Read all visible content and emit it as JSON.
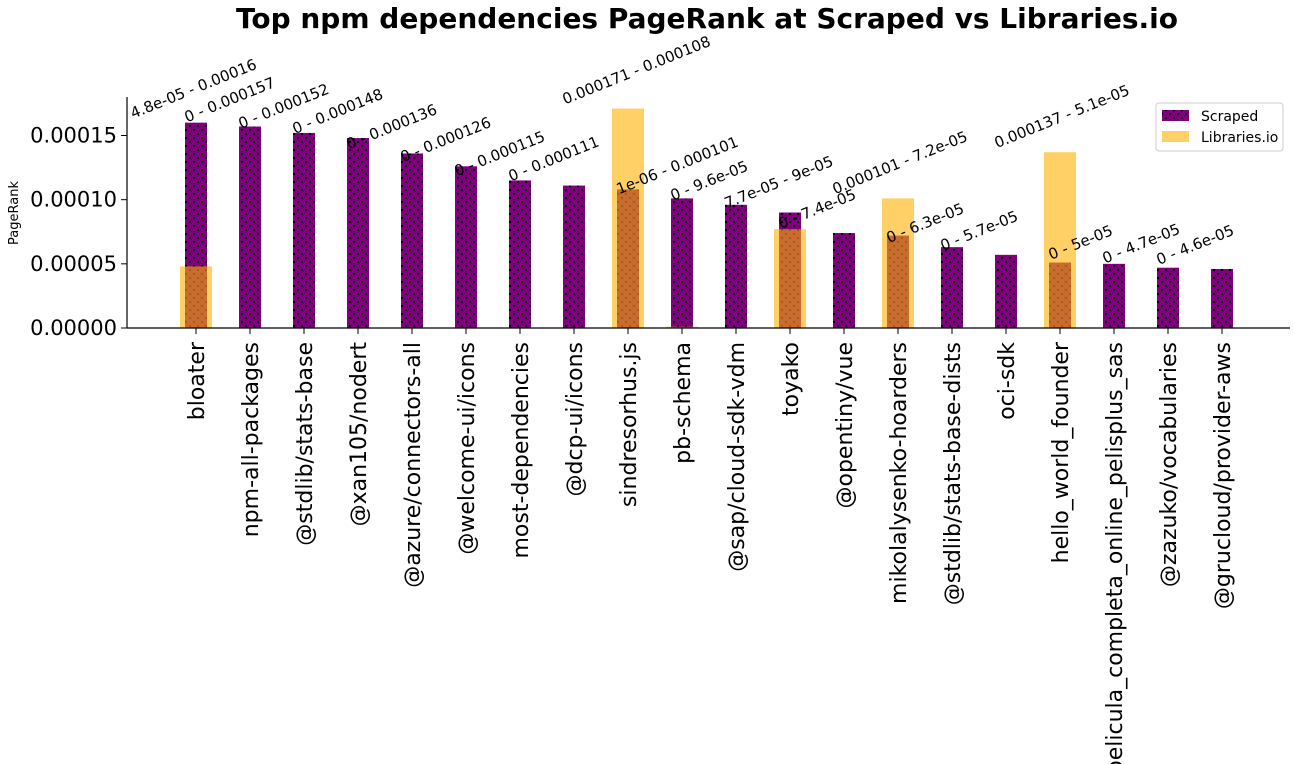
{
  "chart_data": {
    "type": "bar",
    "title": "Top npm dependencies PageRank at Scraped vs Libraries.io",
    "xlabel": "",
    "ylabel": "PageRank",
    "ylim": [
      0,
      0.00018
    ],
    "yticks": [
      "0.00000",
      "0.00005",
      "0.00010",
      "0.00015"
    ],
    "ytick_values": [
      0,
      5e-05,
      0.0001,
      0.00015
    ],
    "grid": false,
    "legend_position": "top-right",
    "categories": [
      "bloater",
      "npm-all-packages",
      "@stdlib/stats-base",
      "@xan105/nodert",
      "@azure/connectors-all",
      "@welcome-ui/icons",
      "most-dependencies",
      "@dcp-ui/icons",
      "sindresorhus.js",
      "pb-schema",
      "@sap/cloud-sdk-vdm",
      "toyako",
      "@opentiny/vue",
      "mikolalysenko-hoarders",
      "@stdlib/stats-base-dists",
      "oci-sdk",
      "hello_world_founder",
      "pelicula_completa_online_pelisplus_sas",
      "@zazuko/vocabularies",
      "@grucloud/provider-aws"
    ],
    "series": [
      {
        "name": "Scraped",
        "color": "#800080",
        "values": [
          0.00016,
          0.000157,
          0.000152,
          0.000148,
          0.000136,
          0.000126,
          0.000115,
          0.000111,
          0.000108,
          0.000101,
          9.6e-05,
          9e-05,
          7.4e-05,
          7.2e-05,
          6.3e-05,
          5.7e-05,
          5.1e-05,
          5e-05,
          4.7e-05,
          4.6e-05
        ]
      },
      {
        "name": "Libraries.io",
        "color": "#FFB000",
        "values": [
          4.8e-05,
          0,
          0,
          0,
          0,
          0,
          0,
          0,
          0.000171,
          1e-06,
          0,
          7.7e-05,
          0,
          0.000101,
          0,
          0,
          0.000137,
          0,
          0,
          0
        ]
      }
    ],
    "annotations": [
      "4.8e-05 - 0.00016",
      "0 - 0.000157",
      "0 - 0.000152",
      "0 - 0.000148",
      "0 - 0.000136",
      "0 - 0.000126",
      "0 - 0.000115",
      "0 - 0.000111",
      "0.000171 - 0.000108",
      "1e-06 - 0.000101",
      "0 - 9.6e-05",
      "7.7e-05 - 9e-05",
      "0 - 7.4e-05",
      "0.000101 - 7.2e-05",
      "0 - 6.3e-05",
      "0 - 5.7e-05",
      "0.000137 - 5.1e-05",
      "0 - 5e-05",
      "0 - 4.7e-05",
      "0 - 4.6e-05"
    ]
  }
}
